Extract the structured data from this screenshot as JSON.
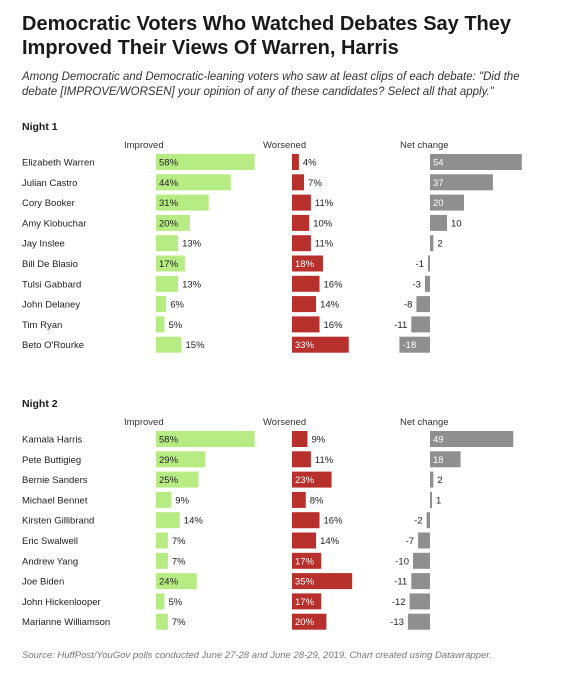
{
  "title": "Democratic Voters Who Watched Debates Say They Improved Their Views Of Warren, Harris",
  "subtitle": "Among Democratic and Democratic-leaning voters who saw at least clips of each debate: \"Did the debate [IMPROVE/WORSEN] your opinion of any of these candidates? Select all that apply.\"",
  "source": "Source: HuffPost/YouGov polls conducted June 27-28 and June 28-29, 2019. Chart created using Datawrapper.",
  "colors": {
    "improved": "#b7ec84",
    "worsened": "#b7302b",
    "net": "#8f8f8f"
  },
  "chart_data": {
    "type": "bar",
    "columns": [
      "Improved",
      "Worsened",
      "Net change"
    ],
    "panels": [
      {
        "name": "Night 1",
        "candidates": [
          "Elizabeth Warren",
          "Julian Castro",
          "Cory Booker",
          "Amy Klobuchar",
          "Jay Inslee",
          "Bill De Blasio",
          "Tulsi Gabbard",
          "John Delaney",
          "Tim Ryan",
          "Beto O'Rourke"
        ],
        "improved": [
          58,
          44,
          31,
          20,
          13,
          17,
          13,
          6,
          5,
          15
        ],
        "worsened": [
          4,
          7,
          11,
          10,
          11,
          18,
          16,
          14,
          16,
          33
        ],
        "net": [
          54,
          37,
          20,
          10,
          2,
          -1,
          -3,
          -8,
          -11,
          -18
        ]
      },
      {
        "name": "Night 2",
        "candidates": [
          "Kamala Harris",
          "Pete Buttigieg",
          "Bernie Sanders",
          "Michael Bennet",
          "Kirsten Gillibrand",
          "Eric Swalwell",
          "Andrew Yang",
          "Joe Biden",
          "John Hickenlooper",
          "Marianne Williamson"
        ],
        "improved": [
          58,
          29,
          25,
          9,
          14,
          7,
          7,
          24,
          5,
          7
        ],
        "worsened": [
          9,
          11,
          23,
          8,
          16,
          14,
          17,
          35,
          17,
          20
        ],
        "net": [
          49,
          18,
          2,
          1,
          -2,
          -7,
          -10,
          -11,
          -12,
          -13
        ]
      }
    ]
  }
}
